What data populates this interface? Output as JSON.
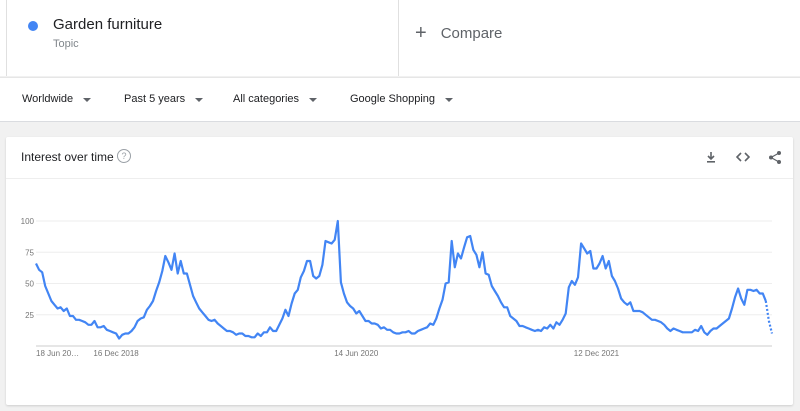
{
  "term": {
    "name": "Garden furniture",
    "type": "Topic",
    "color": "#4285f4"
  },
  "compare": {
    "label": "Compare"
  },
  "filters": [
    {
      "label": "Worldwide"
    },
    {
      "label": "Past 5 years"
    },
    {
      "label": "All categories"
    },
    {
      "label": "Google Shopping"
    }
  ],
  "card": {
    "title": "Interest over time",
    "help_icon": "help-circle-icon",
    "actions": [
      "download-icon",
      "embed-code-icon",
      "share-icon"
    ]
  },
  "chart_data": {
    "type": "line",
    "title": "Interest over time",
    "series_color": "#4285f4",
    "ylim": [
      0,
      100
    ],
    "yticks": [
      25,
      50,
      75,
      100
    ],
    "xtick_labels": [
      {
        "label": "18 Jun 20…",
        "x": 0
      },
      {
        "label": "16 Dec 2018",
        "x": 26
      },
      {
        "label": "14 Jun 2020",
        "x": 104
      },
      {
        "label": "12 Dec 2021",
        "x": 182
      }
    ],
    "grid": true,
    "partial_tail_points": 2,
    "series": [
      {
        "values": [
          66,
          61,
          59,
          48,
          42,
          36,
          33,
          30,
          31,
          28,
          30,
          24,
          24,
          21,
          21,
          20,
          19,
          17,
          17,
          20,
          15,
          15,
          16,
          13,
          12,
          11,
          10,
          6,
          9,
          10,
          10,
          12,
          15,
          20,
          22,
          23,
          29,
          32,
          36,
          44,
          51,
          60,
          72,
          67,
          61,
          74,
          58,
          68,
          58,
          58,
          49,
          40,
          35,
          30,
          27,
          24,
          21,
          20,
          21,
          18,
          16,
          14,
          12,
          12,
          11,
          9,
          10,
          10,
          8,
          8,
          7,
          7,
          10,
          8,
          11,
          11,
          15,
          12,
          12,
          17,
          22,
          29,
          24,
          34,
          42,
          45,
          55,
          60,
          68,
          68,
          56,
          54,
          56,
          65,
          84,
          83,
          82,
          85,
          100,
          51,
          42,
          35,
          32,
          30,
          26,
          28,
          24,
          20,
          20,
          18,
          18,
          17,
          14,
          15,
          13,
          13,
          11,
          10,
          10,
          11,
          11,
          12,
          10,
          10,
          12,
          13,
          14,
          15,
          18,
          17,
          22,
          30,
          37,
          50,
          51,
          84,
          63,
          74,
          70,
          79,
          87,
          88,
          77,
          73,
          63,
          75,
          58,
          57,
          48,
          44,
          40,
          35,
          31,
          31,
          24,
          22,
          20,
          16,
          16,
          15,
          14,
          13,
          12,
          13,
          12,
          15,
          14,
          17,
          14,
          19,
          17,
          21,
          26,
          47,
          52,
          49,
          55,
          82,
          78,
          74,
          76,
          62,
          62,
          66,
          72,
          62,
          68,
          56,
          52,
          46,
          38,
          35,
          33,
          35,
          28,
          28,
          28,
          27,
          25,
          23,
          21,
          21,
          20,
          19,
          17,
          14,
          12,
          14,
          13,
          12,
          11,
          11,
          11,
          11,
          13,
          12,
          16,
          11,
          9,
          12,
          14,
          14,
          16,
          18,
          20,
          22,
          30,
          39,
          46,
          38,
          33,
          45,
          45,
          44,
          45,
          42,
          42,
          36,
          20,
          10
        ]
      }
    ]
  }
}
